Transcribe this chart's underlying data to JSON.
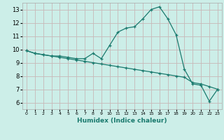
{
  "xlabel": "Humidex (Indice chaleur)",
  "xlim": [
    -0.5,
    23.5
  ],
  "ylim": [
    5.5,
    13.5
  ],
  "yticks": [
    6,
    7,
    8,
    9,
    10,
    11,
    12,
    13
  ],
  "xticks": [
    0,
    1,
    2,
    3,
    4,
    5,
    6,
    7,
    8,
    9,
    10,
    11,
    12,
    13,
    14,
    15,
    16,
    17,
    18,
    19,
    20,
    21,
    22,
    23
  ],
  "bg_color": "#cceee8",
  "grid_color": "#c8b8b8",
  "line_color": "#1a7a6e",
  "line1_x": [
    0,
    1,
    2,
    3,
    4,
    5,
    6,
    7,
    8,
    9,
    10,
    11,
    12,
    13,
    14,
    15,
    16,
    17,
    18,
    19,
    20,
    21,
    22,
    23
  ],
  "line1_y": [
    9.9,
    9.7,
    9.6,
    9.5,
    9.5,
    9.4,
    9.3,
    9.3,
    9.7,
    9.3,
    10.3,
    11.3,
    11.6,
    11.7,
    12.3,
    13.0,
    13.2,
    12.3,
    11.1,
    8.5,
    7.4,
    7.3,
    6.1,
    7.0
  ],
  "line2_x": [
    0,
    1,
    2,
    3,
    4,
    5,
    6,
    7,
    8,
    9,
    10,
    11,
    12,
    13,
    14,
    15,
    16,
    17,
    18,
    19,
    20,
    21,
    22,
    23
  ],
  "line2_y": [
    9.9,
    9.7,
    9.6,
    9.5,
    9.4,
    9.3,
    9.2,
    9.1,
    9.0,
    8.9,
    8.8,
    8.7,
    8.6,
    8.5,
    8.4,
    8.3,
    8.2,
    8.1,
    8.0,
    7.9,
    7.5,
    7.4,
    7.2,
    7.0
  ]
}
